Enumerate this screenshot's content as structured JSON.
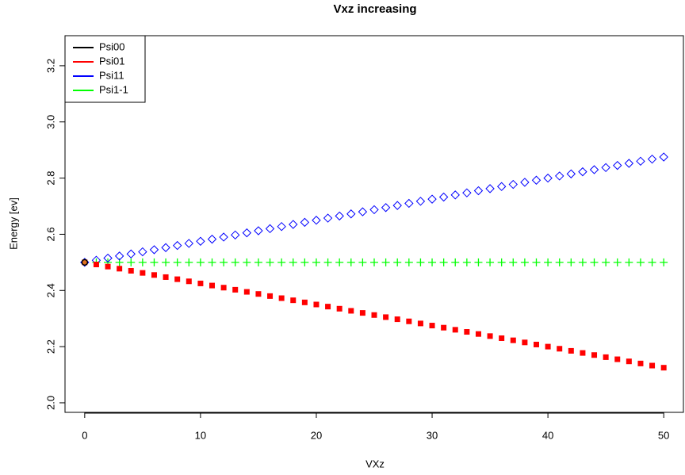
{
  "chart_data": {
    "type": "scatter",
    "title": "Vxz increasing",
    "x_label": "VXz",
    "y_label": "Energy [ev]",
    "x": [
      0,
      1,
      2,
      3,
      4,
      5,
      6,
      7,
      8,
      9,
      10,
      11,
      12,
      13,
      14,
      15,
      16,
      17,
      18,
      19,
      20,
      21,
      22,
      23,
      24,
      25,
      26,
      27,
      28,
      29,
      30,
      31,
      32,
      33,
      34,
      35,
      36,
      37,
      38,
      39,
      40,
      41,
      42,
      43,
      44,
      45,
      46,
      47,
      48,
      49,
      50
    ],
    "series": [
      {
        "name": "Psi00",
        "color": "#000000",
        "marker": "circle",
        "values": [
          2.5,
          null,
          null,
          null,
          null,
          null,
          null,
          null,
          null,
          null,
          null,
          null,
          null,
          null,
          null,
          null,
          null,
          null,
          null,
          null,
          null,
          null,
          null,
          null,
          null,
          null,
          null,
          null,
          null,
          null,
          null,
          null,
          null,
          null,
          null,
          null,
          null,
          null,
          null,
          null,
          null,
          null,
          null,
          null,
          null,
          null,
          null,
          null,
          null,
          null,
          null
        ]
      },
      {
        "name": "Psi01",
        "color": "#ff0000",
        "marker": "square",
        "values": [
          2.5,
          2.4925,
          2.485,
          2.4775,
          2.47,
          2.4625,
          2.455,
          2.4475,
          2.44,
          2.4325,
          2.425,
          2.4175,
          2.41,
          2.4025,
          2.395,
          2.3875,
          2.38,
          2.3725,
          2.365,
          2.3575,
          2.35,
          2.3425,
          2.335,
          2.3275,
          2.32,
          2.3125,
          2.305,
          2.2975,
          2.29,
          2.2825,
          2.275,
          2.2675,
          2.26,
          2.2525,
          2.245,
          2.2375,
          2.23,
          2.2225,
          2.215,
          2.2075,
          2.2,
          2.1925,
          2.185,
          2.1775,
          2.17,
          2.1625,
          2.155,
          2.1475,
          2.14,
          2.1325,
          2.125
        ]
      },
      {
        "name": "Psi11",
        "color": "#0000ff",
        "marker": "diamond",
        "values": [
          2.5,
          2.5075,
          2.515,
          2.5225,
          2.53,
          2.5375,
          2.545,
          2.5525,
          2.56,
          2.5675,
          2.575,
          2.5825,
          2.59,
          2.5975,
          2.605,
          2.6125,
          2.62,
          2.6275,
          2.635,
          2.6425,
          2.65,
          2.6575,
          2.665,
          2.6725,
          2.68,
          2.6875,
          2.695,
          2.7025,
          2.71,
          2.7175,
          2.725,
          2.7325,
          2.74,
          2.7475,
          2.755,
          2.7625,
          2.77,
          2.7775,
          2.785,
          2.7925,
          2.8,
          2.8075,
          2.815,
          2.8225,
          2.83,
          2.8375,
          2.845,
          2.8525,
          2.86,
          2.8675,
          2.875
        ]
      },
      {
        "name": "Psi1-1",
        "color": "#00ff00",
        "marker": "plus",
        "values": [
          2.5,
          2.5,
          2.5,
          2.5,
          2.5,
          2.5,
          2.5,
          2.5,
          2.5,
          2.5,
          2.5,
          2.5,
          2.5,
          2.5,
          2.5,
          2.5,
          2.5,
          2.5,
          2.5,
          2.5,
          2.5,
          2.5,
          2.5,
          2.5,
          2.5,
          2.5,
          2.5,
          2.5,
          2.5,
          2.5,
          2.5,
          2.5,
          2.5,
          2.5,
          2.5,
          2.5,
          2.5,
          2.5,
          2.5,
          2.5,
          2.5,
          2.5,
          2.5,
          2.5,
          2.5,
          2.5,
          2.5,
          2.5,
          2.5,
          2.5,
          2.5
        ]
      }
    ],
    "xlim": [
      -1.7,
      51.7
    ],
    "xticks": [
      0,
      10,
      20,
      30,
      40,
      50
    ],
    "ylim": [
      1.966,
      3.307
    ],
    "yticks": [
      {
        "value": 2,
        "label": "2.0"
      },
      2.2,
      2.4,
      2.6,
      2.8,
      {
        "value": 3,
        "label": "3.0"
      },
      3.2
    ],
    "legend": "top-left",
    "grid": false
  }
}
